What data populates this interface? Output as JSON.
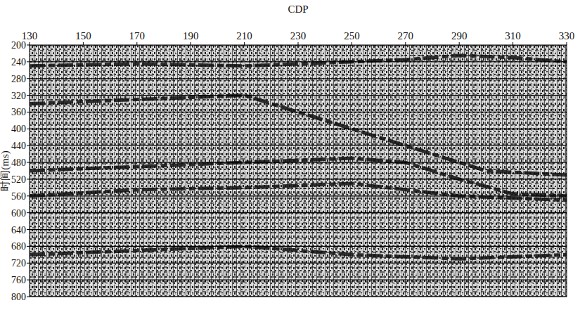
{
  "chart_data": {
    "type": "seismic_section",
    "x_label": "CDP",
    "y_label": "时间(ms)",
    "xlim": [
      130,
      330
    ],
    "xticks": [
      130,
      150,
      170,
      190,
      210,
      230,
      250,
      270,
      290,
      310,
      330
    ],
    "ylim": [
      200,
      800
    ],
    "yticks": [
      200,
      240,
      280,
      320,
      360,
      400,
      440,
      480,
      520,
      560,
      600,
      640,
      680,
      720,
      760,
      800
    ],
    "grid": true,
    "horizons": [
      {
        "x": [
          130,
          170,
          210,
          250,
          270,
          290,
          310,
          330
        ],
        "y": [
          250,
          245,
          250,
          240,
          235,
          225,
          230,
          240
        ]
      },
      {
        "x": [
          130,
          170,
          210,
          240,
          260,
          280,
          300,
          330
        ],
        "y": [
          340,
          330,
          320,
          380,
          420,
          460,
          500,
          510
        ]
      },
      {
        "x": [
          130,
          170,
          210,
          250,
          270,
          290,
          310,
          330
        ],
        "y": [
          500,
          490,
          480,
          470,
          480,
          520,
          555,
          560
        ]
      },
      {
        "x": [
          130,
          170,
          210,
          250,
          290,
          330
        ],
        "y": [
          560,
          545,
          540,
          530,
          560,
          570
        ]
      },
      {
        "x": [
          130,
          170,
          210,
          250,
          290,
          330
        ],
        "y": [
          700,
          690,
          680,
          700,
          710,
          700
        ]
      }
    ]
  }
}
